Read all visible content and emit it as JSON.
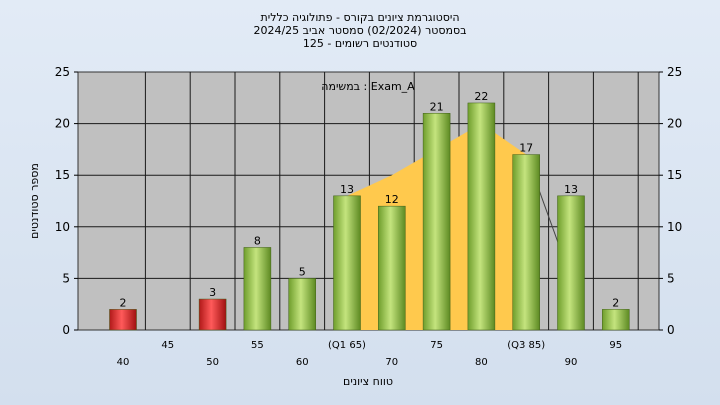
{
  "chart_data": {
    "type": "bar",
    "title_lines": [
      "היסטוגרמת ציונים בקורס - פתולוגיה כללית",
      "בסמסטר  (02/2024)  סמסטר אביב 2024/25",
      "סטודנטים רשומים - 125"
    ],
    "annotation": "במשימה : Exam_A",
    "xlabel": "טווח ציונים",
    "ylabel": "מספר סטודנטים",
    "ylim": [
      0,
      25
    ],
    "yticks": [
      0,
      5,
      10,
      15,
      20,
      25
    ],
    "grid": true,
    "x_categories": [
      "40",
      "45",
      "50",
      "55",
      "60",
      "(Q1 65)",
      "70",
      "75",
      "80",
      "(Q3 85)",
      "90",
      "95"
    ],
    "bars": [
      {
        "category": "40",
        "value": 2,
        "color": "#e03030"
      },
      {
        "category": "50",
        "value": 3,
        "color": "#e03030"
      },
      {
        "category": "55",
        "value": 8,
        "color": "#8fc24a"
      },
      {
        "category": "60",
        "value": 5,
        "color": "#8fc24a"
      },
      {
        "category": "(Q1 65)",
        "value": 13,
        "color": "#8fc24a"
      },
      {
        "category": "70",
        "value": 12,
        "color": "#8fc24a"
      },
      {
        "category": "75",
        "value": 21,
        "color": "#8fc24a"
      },
      {
        "category": "80",
        "value": 22,
        "color": "#8fc24a"
      },
      {
        "category": "(Q3 85)",
        "value": 17,
        "color": "#8fc24a"
      },
      {
        "category": "90",
        "value": 13,
        "color": "#8fc24a"
      },
      {
        "category": "95",
        "value": 2,
        "color": "#8fc24a"
      }
    ],
    "area": {
      "color": "#ffc94d",
      "points": [
        {
          "x": "(Q1 65)",
          "y": 13
        },
        {
          "x": "70",
          "y": 15
        },
        {
          "x": "75",
          "y": 17.5
        },
        {
          "x": "80",
          "y": 20
        },
        {
          "x": "(Q3 85)",
          "y": 17
        }
      ]
    },
    "line": {
      "color": "#444444",
      "points": [
        {
          "x": "(Q3 85)",
          "y": 17
        },
        {
          "x": "90",
          "y": 5
        }
      ]
    },
    "colors": {
      "plot_bg": "#c0c0c0",
      "grid": "#1a1a1a"
    }
  }
}
